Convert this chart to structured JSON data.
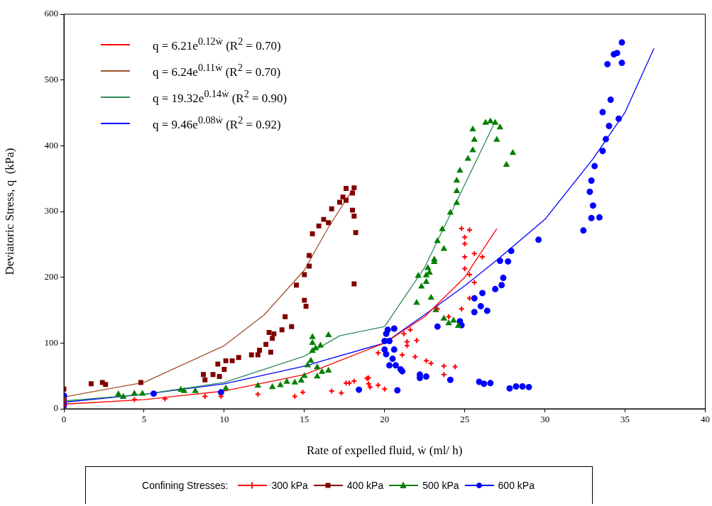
{
  "chart_data": {
    "type": "scatter",
    "xlabel": "Rate of expelled fluid, ẇ (ml/ h)",
    "ylabel": "Deviatoric Stress, q  (kPa)",
    "legend_title": "Confining Stresses:",
    "xlim": [
      0,
      40
    ],
    "xticks": [
      0,
      5,
      10,
      15,
      20,
      25,
      30,
      35,
      40
    ],
    "ylim": [
      0,
      600
    ],
    "yticks": [
      0,
      100,
      200,
      300,
      400,
      500,
      600
    ],
    "grid": false,
    "legend": "bottom",
    "series": [
      {
        "name": "300 kPa",
        "color": "#ff0000",
        "marker": "cross",
        "x": [
          0,
          0,
          0,
          4.4,
          6.3,
          8.8,
          9.8,
          12.1,
          14.4,
          14.9,
          16.7,
          17.3,
          17.6,
          18.1,
          18.9,
          19.0,
          19.6,
          17.8,
          19.0,
          19.1,
          20.0,
          19.6,
          21.1,
          21.2,
          21.4,
          21.4,
          22.0,
          21.9,
          22.6,
          22.9,
          23.7,
          23.7,
          24.4,
          23.3,
          24.0,
          24.8,
          25.3,
          25.0,
          25.0,
          25.0,
          25.6,
          26.1,
          25.0,
          25.3,
          25.6,
          25.3,
          24.8,
          21.6
        ],
        "values": [
          5,
          10,
          15,
          14,
          15,
          19,
          19,
          22,
          19,
          25,
          27,
          24,
          39,
          42,
          46,
          38,
          36,
          39,
          47,
          33,
          30,
          85,
          82,
          114,
          102,
          96,
          104,
          79,
          73,
          69,
          65,
          52,
          64,
          152,
          140,
          274,
          272,
          261,
          251,
          231,
          236,
          231,
          213,
          204,
          192,
          168,
          152,
          120
        ]
      },
      {
        "name": "400 kPa",
        "color": "#800000",
        "marker": "square",
        "x": [
          0,
          1.7,
          2.4,
          2.6,
          4.8,
          8.7,
          8.8,
          9.3,
          9.6,
          9.7,
          10.0,
          10.1,
          10.5,
          10.9,
          11.7,
          12.1,
          12.2,
          12.6,
          12.9,
          12.8,
          13.0,
          13.1,
          13.6,
          13.8,
          14.2,
          14.5,
          15.0,
          15.1,
          15.0,
          15.3,
          15.3,
          15.5,
          15.9,
          16.2,
          16.5,
          16.7,
          17.2,
          17.4,
          17.6,
          18.0,
          18.1,
          17.6,
          18.0,
          18.1,
          18.2,
          18.1
        ],
        "values": [
          30,
          38,
          40,
          37,
          40,
          52,
          44,
          52,
          68,
          49,
          60,
          73,
          73,
          78,
          82,
          82,
          89,
          98,
          86,
          116,
          107,
          114,
          120,
          140,
          125,
          188,
          165,
          156,
          204,
          217,
          233,
          266,
          278,
          288,
          283,
          304,
          314,
          322,
          335,
          328,
          336,
          317,
          302,
          293,
          268,
          190
        ]
      },
      {
        "name": "500 kPa",
        "color": "#008000",
        "marker": "triangle",
        "x": [
          0,
          3.4,
          3.7,
          4.4,
          4.9,
          7.3,
          7.5,
          8.2,
          10.1,
          12.1,
          13.0,
          13.5,
          13.9,
          14.4,
          14.8,
          15.0,
          15.2,
          15.4,
          15.5,
          15.5,
          15.5,
          15.7,
          15.8,
          15.8,
          16.1,
          16.5,
          16.5,
          16.0,
          22.0,
          22.3,
          22.6,
          22.6,
          22.1,
          22.8,
          22.7,
          23.1,
          23.1,
          22.9,
          23.3,
          23.7,
          23.6,
          24.1,
          24.5,
          24.5,
          24.5,
          24.7,
          25.2,
          25.5,
          25.6,
          25.5,
          26.3,
          26.6,
          26.9,
          27.2,
          27.0,
          28.0,
          27.6,
          23.2,
          23.7,
          24.0,
          24.3,
          24.6
        ],
        "values": [
          15,
          22,
          18,
          23,
          23,
          29,
          27,
          27,
          31,
          35,
          33,
          36,
          41,
          40,
          43,
          50,
          66,
          73,
          88,
          100,
          109,
          92,
          63,
          49,
          56,
          58,
          112,
          96,
          161,
          186,
          193,
          203,
          202,
          207,
          214,
          223,
          227,
          169,
          255,
          243,
          273,
          298,
          313,
          331,
          347,
          362,
          380,
          393,
          409,
          425,
          435,
          437,
          435,
          428,
          409,
          389,
          371,
          150,
          137,
          130,
          134,
          126
        ]
      },
      {
        "name": "600 kPa",
        "color": "#0000ff",
        "marker": "circle",
        "x": [
          0,
          0,
          0,
          0,
          5.6,
          9.8,
          18.4,
          20.1,
          20.2,
          20.6,
          20.0,
          20.3,
          20.0,
          20.1,
          20.6,
          20.5,
          20.3,
          20.7,
          21.0,
          21.1,
          20.8,
          22.2,
          22.6,
          22.2,
          24.1,
          23.3,
          24.7,
          24.8,
          25.6,
          26.1,
          26.0,
          25.6,
          26.4,
          26.9,
          27.3,
          27.4,
          27.2,
          27.7,
          27.9,
          25.9,
          26.2,
          26.6,
          27.8,
          28.2,
          28.6,
          29.0,
          29.6,
          32.4,
          32.9,
          33.4,
          33.0,
          32.8,
          32.9,
          33.1,
          33.6,
          33.8,
          34.0,
          33.6,
          34.1,
          34.6,
          33.9,
          34.3,
          34.5,
          34.8,
          34.8
        ],
        "values": [
          5,
          10,
          15,
          20,
          23,
          25,
          29,
          114,
          120,
          122,
          103,
          103,
          90,
          83,
          90,
          76,
          66,
          66,
          60,
          57,
          28,
          52,
          49,
          47,
          44,
          125,
          133,
          127,
          168,
          176,
          156,
          147,
          149,
          182,
          188,
          199,
          225,
          224,
          240,
          41,
          38,
          39,
          31,
          34,
          34,
          33,
          257,
          271,
          290,
          291,
          309,
          330,
          347,
          369,
          392,
          410,
          430,
          451,
          470,
          441,
          524,
          539,
          541,
          526,
          557
        ]
      },
      {
        "name": "q = 6.21e$^{0.12ẇ}$  (R$^{2}$ = 0.70)",
        "type": "line",
        "color": "#ff0000",
        "x": [
          0,
          5,
          10,
          15,
          20,
          22.5,
          25,
          27
        ],
        "values": [
          7,
          14,
          27,
          52,
          100,
          140,
          200,
          274
        ]
      },
      {
        "name": "q = 6.24e$^{0.11ẇ}$  (R$^{2}$ = 0.70)",
        "type": "line",
        "color": "#a0522d",
        "x": [
          0,
          5,
          10,
          12.5,
          15,
          16.5,
          18
        ],
        "values": [
          18,
          40,
          96,
          143,
          211,
          276,
          333
        ]
      },
      {
        "name": "q = 19.32e$^{0.14ẇ}$ (R$^{2}$ = 0.90)",
        "type": "line",
        "color": "#2e8b57",
        "x": [
          0,
          5,
          10,
          15,
          17.2,
          20,
          22.5,
          25,
          26.8
        ],
        "values": [
          12,
          22,
          40,
          80,
          111,
          125,
          215,
          341,
          432
        ]
      },
      {
        "name": "q = 9.46e$^{0.08ẇ}$  (R$^{2}$ = 0.92)",
        "type": "line",
        "color": "#0000ff",
        "x": [
          0,
          5,
          10,
          15,
          20,
          22.5,
          25,
          27,
          30,
          33,
          35,
          36.8
        ],
        "values": [
          10,
          22,
          38,
          65,
          100,
          143,
          187,
          226,
          288,
          380,
          451,
          548
        ]
      }
    ]
  }
}
